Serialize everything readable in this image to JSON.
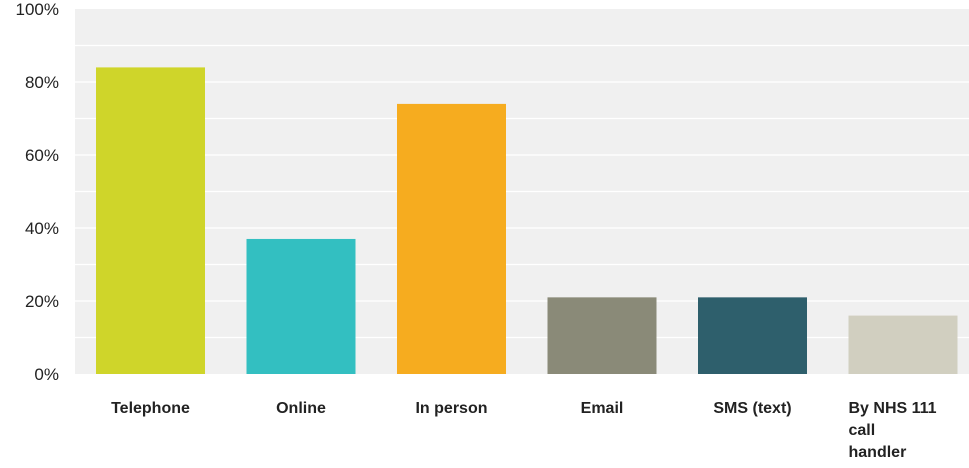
{
  "chart_data": {
    "type": "bar",
    "categories": [
      "Telephone",
      "Online",
      "In person",
      "Email",
      "SMS (text)",
      "By NHS 111 call handler"
    ],
    "category_lines": [
      [
        "Telephone"
      ],
      [
        "Online"
      ],
      [
        "In person"
      ],
      [
        "Email"
      ],
      [
        "SMS (text)"
      ],
      [
        "By NHS 111",
        "call",
        "handler"
      ]
    ],
    "values": [
      84,
      37,
      74,
      21,
      21,
      16
    ],
    "colors": [
      "#cfd52a",
      "#33bfc1",
      "#f6ac1f",
      "#8a8a78",
      "#2e5f6c",
      "#d1cfc0"
    ],
    "ylim": [
      0,
      100
    ],
    "yticks": [
      "0%",
      "20%",
      "40%",
      "60%",
      "80%",
      "100%"
    ],
    "ytick_values": [
      0,
      20,
      40,
      60,
      80,
      100
    ],
    "minor_gridlines": [
      10,
      30,
      50,
      70,
      90
    ],
    "title": "",
    "xlabel": "",
    "ylabel": "",
    "grid": true,
    "background": "#f0f0f0",
    "gridline_color": "#ffffff"
  }
}
